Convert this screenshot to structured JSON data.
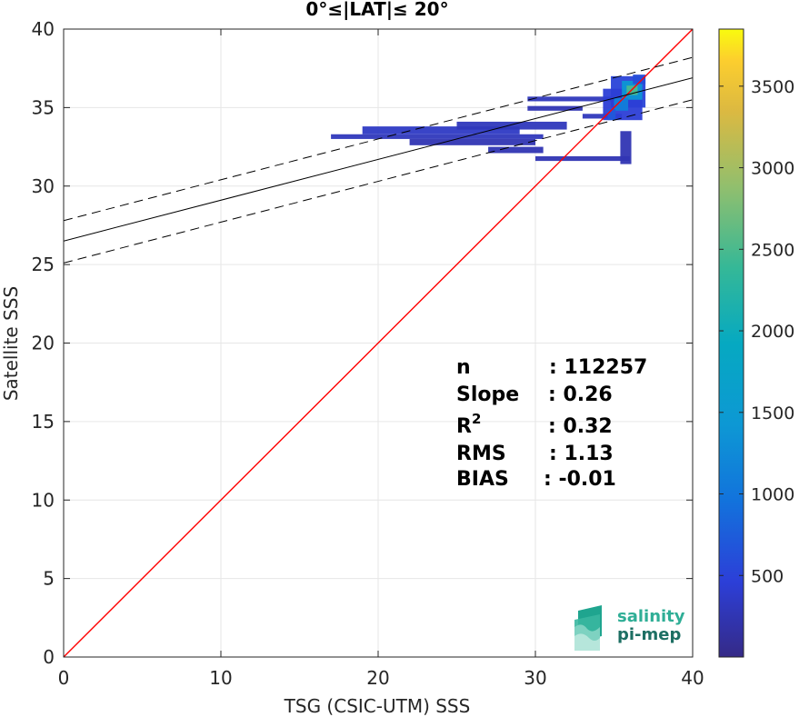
{
  "chart_data": {
    "type": "heatmap",
    "title": "0°≤|LAT|≤ 20°",
    "xlabel": "TSG (CSIC-UTM) SSS",
    "ylabel": "Satellite SSS",
    "xlim": [
      0,
      40
    ],
    "ylim": [
      0,
      40
    ],
    "xticks": [
      "0",
      "10",
      "20",
      "30",
      "40"
    ],
    "yticks": [
      "0",
      "5",
      "10",
      "15",
      "20",
      "25",
      "30",
      "35",
      "40"
    ],
    "grid": true,
    "colorbar": {
      "range": [
        0,
        3850
      ],
      "ticks": [
        "500",
        "1000",
        "1500",
        "2000",
        "2500",
        "3000",
        "3500"
      ],
      "colormap": "parula"
    },
    "lines": [
      {
        "name": "1:1",
        "color": "#ff0000",
        "x": [
          0,
          40
        ],
        "y": [
          0,
          40
        ]
      },
      {
        "name": "fit",
        "color": "#000000",
        "style": "solid",
        "intercept": 26.5,
        "slope": 0.26
      },
      {
        "name": "fit+1",
        "color": "#000000",
        "style": "dashed",
        "intercept": 27.8,
        "slope": 0.26
      },
      {
        "name": "fit-1",
        "color": "#000000",
        "style": "dashed",
        "intercept": 25.1,
        "slope": 0.26
      }
    ],
    "density": [
      {
        "x0": 17.0,
        "x1": 30.5,
        "y0": 33.0,
        "y1": 33.3,
        "count": 300
      },
      {
        "x0": 19.0,
        "x1": 29.0,
        "y0": 33.3,
        "y1": 33.8,
        "count": 350
      },
      {
        "x0": 22.0,
        "x1": 30.0,
        "y0": 32.6,
        "y1": 33.0,
        "count": 250
      },
      {
        "x0": 25.0,
        "x1": 32.0,
        "y0": 33.6,
        "y1": 34.1,
        "count": 300
      },
      {
        "x0": 27.0,
        "x1": 30.5,
        "y0": 32.1,
        "y1": 32.5,
        "count": 250
      },
      {
        "x0": 33.0,
        "x1": 35.5,
        "y0": 34.3,
        "y1": 34.6,
        "count": 300
      },
      {
        "x0": 29.5,
        "x1": 35.5,
        "y0": 35.4,
        "y1": 35.7,
        "count": 300
      },
      {
        "x0": 29.5,
        "x1": 33.0,
        "y0": 34.8,
        "y1": 35.1,
        "count": 250
      },
      {
        "x0": 34.8,
        "x1": 37.0,
        "y0": 35.0,
        "y1": 37.0,
        "count": 500
      },
      {
        "x0": 34.3,
        "x1": 36.8,
        "y0": 34.2,
        "y1": 36.2,
        "count": 450
      },
      {
        "x0": 35.5,
        "x1": 36.8,
        "y0": 35.5,
        "y1": 36.7,
        "count": 1400
      },
      {
        "x0": 35.8,
        "x1": 36.5,
        "y0": 35.8,
        "y1": 36.4,
        "count": 2500
      },
      {
        "x0": 35.0,
        "x1": 35.9,
        "y0": 34.8,
        "y1": 35.6,
        "count": 1100
      },
      {
        "x0": 34.6,
        "x1": 35.1,
        "y0": 34.2,
        "y1": 34.9,
        "count": 700
      },
      {
        "x0": 36.2,
        "x1": 37.0,
        "y0": 36.5,
        "y1": 37.1,
        "count": 600
      },
      {
        "x0": 30.0,
        "x1": 36.0,
        "y0": 31.6,
        "y1": 31.9,
        "count": 250
      },
      {
        "x0": 35.4,
        "x1": 36.1,
        "y0": 31.4,
        "y1": 33.5,
        "count": 250
      }
    ],
    "stats": [
      {
        "key": "n",
        "sup": "",
        "value": ": 112257"
      },
      {
        "key": "Slope",
        "sup": "",
        "value": ": 0.26"
      },
      {
        "key": "R",
        "sup": "2",
        "value": ": 0.32"
      },
      {
        "key": "RMS",
        "sup": "",
        "value": ": 1.13"
      },
      {
        "key": "BIAS",
        "sup": "",
        "value": ": -0.01"
      }
    ]
  },
  "logo": {
    "line1": "salinity",
    "line2": "pi-mep"
  }
}
